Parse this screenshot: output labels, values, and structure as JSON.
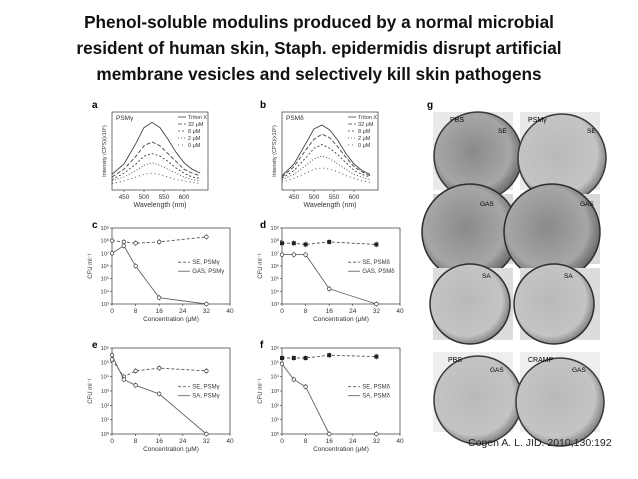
{
  "slide": {
    "title_lines": [
      "Phenol-soluble modulins produced by a normal microbial",
      "resident of human skin, Staph. epidermidis disrupt artificial",
      "membrane vesicles and selectively kill skin pathogens"
    ],
    "citation": "Cogen A. L. JID. 2010;130:192"
  },
  "figure": {
    "panels": {
      "a": {
        "letter": "a",
        "inset_title": "PSMγ"
      },
      "b": {
        "letter": "b",
        "inset_title": "PSMδ"
      },
      "c": {
        "letter": "c"
      },
      "d": {
        "letter": "d"
      },
      "e": {
        "letter": "e"
      },
      "f": {
        "letter": "f"
      },
      "g": {
        "letter": "g"
      }
    },
    "spectra_legend": [
      "Triton X",
      "32 μM",
      "8 μM",
      "2 μM",
      "0 μM"
    ],
    "spectra_xlabel": "Wavelength (nm)",
    "spectra_ylabel": "Intensity (CPS)(x10⁶)",
    "spectra_xticks": [
      "450",
      "500",
      "550",
      "600"
    ],
    "cfu_ylabel": "CFU ml⁻¹",
    "conc_xlabel": "Concentration (μM)",
    "conc_xticks": [
      "0",
      "8",
      "16",
      "24",
      "32",
      "40"
    ],
    "micrograph_labels": {
      "r1": {
        "left": "PBS",
        "right": "PSMγ",
        "left_tag": "SE",
        "right_tag": "SE"
      },
      "r2": {
        "left_tag": "GAS",
        "right_tag": "GAS"
      },
      "r3": {
        "left_tag": "SA",
        "right_tag": "SA"
      },
      "r4": {
        "left": "PBS",
        "right": "CRAMP",
        "left_tag": "GAS",
        "right_tag": "GAS"
      }
    }
  },
  "chart_data": [
    {
      "panel": "a",
      "type": "line",
      "x": [
        420,
        450,
        480,
        500,
        520,
        540,
        560,
        580,
        600,
        620,
        640
      ],
      "ylim": [
        0,
        6
      ],
      "series": [
        {
          "name": "Triton X",
          "values": [
            1.2,
            2.0,
            3.6,
            4.8,
            5.2,
            4.8,
            3.9,
            2.9,
            2.1,
            1.6,
            1.3
          ]
        },
        {
          "name": "32 μM",
          "values": [
            1.0,
            1.6,
            2.6,
            3.4,
            3.7,
            3.4,
            2.8,
            2.2,
            1.6,
            1.3,
            1.1
          ]
        },
        {
          "name": "8 μM",
          "values": [
            0.8,
            1.3,
            2.0,
            2.6,
            2.8,
            2.6,
            2.2,
            1.7,
            1.3,
            1.0,
            0.9
          ]
        },
        {
          "name": "2 μM",
          "values": [
            0.7,
            1.0,
            1.5,
            1.9,
            2.1,
            1.9,
            1.6,
            1.3,
            1.0,
            0.8,
            0.7
          ]
        },
        {
          "name": "0 μM",
          "values": [
            0.5,
            0.7,
            1.0,
            1.2,
            1.3,
            1.2,
            1.0,
            0.8,
            0.7,
            0.6,
            0.5
          ]
        }
      ]
    },
    {
      "panel": "b",
      "type": "line",
      "x": [
        420,
        450,
        480,
        500,
        520,
        540,
        560,
        580,
        600,
        620,
        640
      ],
      "ylim": [
        0,
        6
      ],
      "series": [
        {
          "name": "Triton X",
          "values": [
            1.1,
            2.0,
            3.6,
            4.7,
            5.0,
            4.6,
            3.8,
            2.8,
            2.0,
            1.5,
            1.2
          ]
        },
        {
          "name": "32 μM",
          "values": [
            1.0,
            1.8,
            3.1,
            3.9,
            4.3,
            4.0,
            3.3,
            2.5,
            1.8,
            1.4,
            1.1
          ]
        },
        {
          "name": "8 μM",
          "values": [
            0.9,
            1.5,
            2.5,
            3.2,
            3.5,
            3.2,
            2.7,
            2.1,
            1.5,
            1.2,
            1.0
          ]
        },
        {
          "name": "2 μM",
          "values": [
            0.8,
            1.2,
            1.9,
            2.4,
            2.6,
            2.4,
            2.0,
            1.6,
            1.2,
            1.0,
            0.8
          ]
        },
        {
          "name": "0 μM",
          "values": [
            0.6,
            0.9,
            1.3,
            1.6,
            1.7,
            1.6,
            1.4,
            1.1,
            0.9,
            0.7,
            0.6
          ]
        }
      ]
    },
    {
      "panel": "c",
      "type": "line",
      "ylog": true,
      "yticks": [
        "10³",
        "10⁴",
        "10⁵",
        "10⁶",
        "10⁷",
        "10⁸",
        "10⁹"
      ],
      "x": [
        0,
        4,
        8,
        16,
        32
      ],
      "series": [
        {
          "name": "SE, PSMγ",
          "values": [
            8.0,
            7.9,
            7.8,
            7.9,
            8.3
          ],
          "style": "dashed"
        },
        {
          "name": "GAS, PSMγ",
          "values": [
            7.0,
            7.6,
            6.0,
            3.5,
            3.0
          ],
          "style": "solid"
        }
      ]
    },
    {
      "panel": "d",
      "type": "line",
      "ylog": true,
      "yticks": [
        "10³",
        "10⁴",
        "10⁵",
        "10⁶",
        "10⁷",
        "10⁸",
        "10⁹"
      ],
      "x": [
        0,
        4,
        8,
        16,
        32
      ],
      "series": [
        {
          "name": "SE, PSMδ",
          "values": [
            7.8,
            7.8,
            7.7,
            7.9,
            7.7
          ],
          "style": "dashed"
        },
        {
          "name": "GAS, PSMδ",
          "values": [
            6.9,
            6.9,
            6.9,
            4.2,
            3.0
          ],
          "style": "solid"
        }
      ]
    },
    {
      "panel": "e",
      "type": "line",
      "ylog": true,
      "yticks": [
        "10⁰",
        "10¹",
        "10²",
        "10³",
        "10⁴",
        "10⁵",
        "10⁶"
      ],
      "x": [
        0,
        4,
        8,
        16,
        32
      ],
      "series": [
        {
          "name": "SE, PSMγ",
          "values": [
            5.2,
            4.0,
            4.4,
            4.6,
            4.4
          ],
          "style": "dashed"
        },
        {
          "name": "SA, PSMγ",
          "values": [
            5.5,
            3.8,
            3.4,
            2.8,
            0.0
          ],
          "style": "solid"
        }
      ]
    },
    {
      "panel": "f",
      "type": "line",
      "ylog": true,
      "yticks": [
        "10⁰",
        "10¹",
        "10²",
        "10³",
        "10⁴",
        "10⁵",
        "10⁶"
      ],
      "x": [
        0,
        4,
        8,
        16,
        32
      ],
      "series": [
        {
          "name": "SE, PSMδ",
          "values": [
            5.3,
            5.3,
            5.3,
            5.5,
            5.4
          ],
          "style": "dashed"
        },
        {
          "name": "SA, PSMδ",
          "values": [
            4.9,
            3.8,
            3.3,
            0.0,
            0.0
          ],
          "style": "solid"
        }
      ]
    }
  ]
}
